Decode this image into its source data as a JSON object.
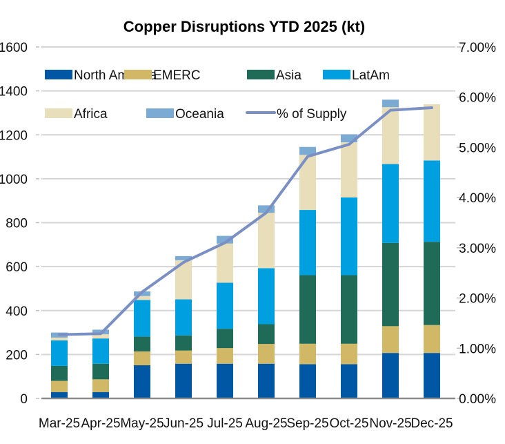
{
  "chart_data": {
    "type": "bar",
    "stacked": true,
    "title": "Copper Disruptions YTD 2025 (kt)",
    "xlabel": "",
    "ylabel": "",
    "y2label": "",
    "categories": [
      "Mar-25",
      "Apr-25",
      "May-25",
      "Jun-25",
      "Jul-25",
      "Aug-25",
      "Sep-25",
      "Oct-25",
      "Nov-25",
      "Dec-25"
    ],
    "ylim": [
      0,
      1600
    ],
    "yticks": [
      0,
      200,
      400,
      600,
      800,
      1000,
      1200,
      1400,
      1600
    ],
    "ytick_labels": [
      "0",
      "200",
      "400",
      "600",
      "800",
      "1000",
      "1200",
      "1400",
      "1600"
    ],
    "y2lim": [
      0,
      7
    ],
    "y2ticks": [
      0,
      1,
      2,
      3,
      4,
      5,
      6,
      7
    ],
    "y2tick_labels": [
      "0.00%",
      "1.00%",
      "2.00%",
      "3.00%",
      "4.00%",
      "5.00%",
      "6.00%",
      "7.00%"
    ],
    "grid": true,
    "legend_position": "top-left",
    "series": [
      {
        "name": "North America",
        "color": "#0057A3",
        "values": [
          29,
          29,
          151,
          158,
          158,
          158,
          156,
          156,
          207,
          207
        ]
      },
      {
        "name": "EMERC",
        "color": "#D1B866",
        "values": [
          51,
          58,
          63,
          60,
          71,
          90,
          93,
          93,
          122,
          127
        ]
      },
      {
        "name": "Asia",
        "color": "#1F6B58",
        "values": [
          68,
          71,
          68,
          69,
          88,
          90,
          312,
          312,
          379,
          379
        ]
      },
      {
        "name": "LatAm",
        "color": "#00A0E0",
        "values": [
          116,
          115,
          166,
          164,
          210,
          255,
          297,
          354,
          359,
          370
        ]
      },
      {
        "name": "Africa",
        "color": "#E8DEBA",
        "values": [
          13,
          19,
          18,
          178,
          178,
          252,
          251,
          251,
          259,
          256
        ]
      },
      {
        "name": "Oceania",
        "color": "#7BAAD3",
        "values": [
          23,
          21,
          21,
          19,
          35,
          34,
          36,
          36,
          34,
          0
        ]
      }
    ],
    "line_series": {
      "name": "% of Supply",
      "color": "#7A8FC4",
      "axis": "right",
      "unit": "%",
      "values": [
        1.27,
        1.29,
        2.12,
        2.71,
        3.1,
        3.7,
        4.82,
        5.06,
        5.74,
        5.79
      ]
    }
  }
}
